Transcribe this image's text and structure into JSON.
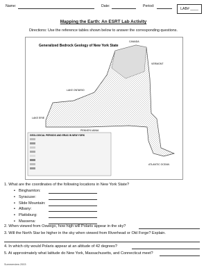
{
  "header": {
    "name_label": "Name:",
    "date_label": "Date:",
    "period_label": "Period:",
    "lab_box": "LAB# ____"
  },
  "title": "Mapping the Earth: An ESRT Lab Activity",
  "directions": "Directions: Use the reference tables shown below to answer the corresponding questions.",
  "map": {
    "title": "Generalized Bedrock Geology of New York State",
    "labels": [
      "LAKE ONTARIO",
      "LAKE ERIE",
      "PENNSYLVANIA",
      "ATLANTIC OCEAN",
      "CANADA",
      "VERMONT"
    ],
    "legend_title": "GEOLOGICAL PERIODS AND ERAS IN NEW YORK"
  },
  "questions": [
    {
      "number": "1.",
      "text": "What are the coordinates of the following locations in New York State?",
      "items": [
        "Binghamton:",
        "Syracuse:",
        "Slide Mountain:",
        "Albany:",
        "Plattsburg:",
        "Massena:"
      ]
    },
    {
      "number": "2.",
      "text": "When viewed from Oswego, how high will Polaris appear in the sky?"
    },
    {
      "number": "3.",
      "text": "Will the North Star be higher in the sky when viewed from Riverhead or Old Forge? Explain."
    },
    {
      "number": "4.",
      "text": "In which city would Polaris appear at an altitude of 42 degrees?"
    },
    {
      "number": "5.",
      "text": "At approximately what latitude do New York, Massachusetts, and Connecticut meet?"
    }
  ],
  "footer": "Summerview 2003"
}
